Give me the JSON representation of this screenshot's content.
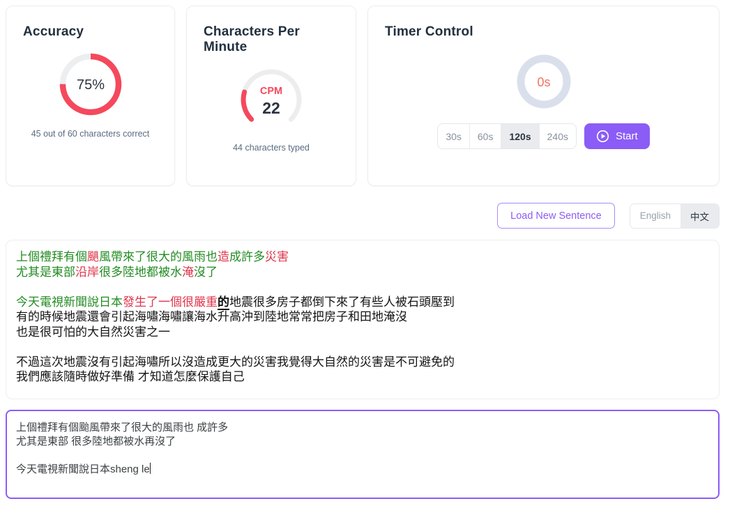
{
  "cards": {
    "accuracy": {
      "title": "Accuracy",
      "percent": "75%",
      "percent_value": 75,
      "caption": "45 out of 60 characters correct"
    },
    "cpm": {
      "title": "Characters Per Minute",
      "label": "CPM",
      "value": "22",
      "caption": "44 characters typed"
    },
    "timer": {
      "title": "Timer Control",
      "elapsed": "0s",
      "durations": [
        "30s",
        "60s",
        "120s",
        "240s"
      ],
      "selected_duration": "120s",
      "start_label": "Start",
      "start_icon": "play-circle-icon"
    }
  },
  "controls": {
    "load_button": "Load New Sentence",
    "lang_english": "English",
    "lang_chinese": "中文",
    "selected_lang": "中文"
  },
  "target_text": {
    "lines": [
      [
        {
          "t": "上個禮拜有個",
          "c": "green"
        },
        {
          "t": "颶",
          "c": "red"
        },
        {
          "t": "風帶來了很大的風雨也",
          "c": "green"
        },
        {
          "t": "造",
          "c": "red"
        },
        {
          "t": "成許多",
          "c": "green"
        },
        {
          "t": "災害",
          "c": "red"
        }
      ],
      [
        {
          "t": "尤其是東部",
          "c": "green"
        },
        {
          "t": "沿岸",
          "c": "red"
        },
        {
          "t": "很多陸地都被水",
          "c": "green"
        },
        {
          "t": "淹",
          "c": "red"
        },
        {
          "t": "沒了",
          "c": "green"
        }
      ],
      [],
      [
        {
          "t": "今天電視新聞說日本",
          "c": "green"
        },
        {
          "t": "發生了一個很嚴重",
          "c": "red"
        },
        {
          "t": "的",
          "c": "current"
        },
        {
          "t": "地震很多房子都倒下來了有些人被石頭壓到",
          "c": "black"
        }
      ],
      [
        {
          "t": "有的時候地震還會引起海嘯海嘯讓海水升高沖到陸地常常把房子和田地淹沒",
          "c": "black"
        }
      ],
      [
        {
          "t": "也是很可怕的大自然災害之一",
          "c": "black"
        }
      ],
      [],
      [
        {
          "t": "不過這次地震沒有引起海嘯所以沒造成更大的災害我覺得大自然的災害是不可避免的",
          "c": "black"
        }
      ],
      [
        {
          "t": "我們應該隨時做好準備 才知道怎麼保護自己",
          "c": "black"
        }
      ]
    ]
  },
  "typing": {
    "lines": [
      "上個禮拜有個颱風帶來了很大的風雨也 成許多",
      "尤其是東部 很多陸地都被水再沒了",
      "",
      "今天電視新聞說日本sheng le"
    ]
  },
  "colors": {
    "accent_purple": "#8b5cf6",
    "chart_red": "#f4495d",
    "text_correct_green": "#228b22",
    "text_wrong_red": "#e0354b",
    "timer_ring": "#d9e0ec",
    "timer_value": "#f07464",
    "title_navy": "#22303f",
    "caption_slate": "#5b6b80"
  }
}
